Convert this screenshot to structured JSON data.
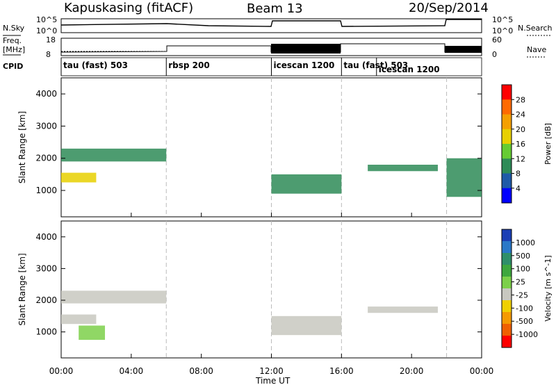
{
  "header": {
    "station": "Kapuskasing (fitACF)",
    "beam": "Beam 13",
    "date": "20/Sep/2014"
  },
  "side_labels": {
    "nsky": "N.Sky",
    "freq": "Freq.",
    "freq_unit": "[MHz]",
    "cpid": "CPID",
    "nsearch": "N.Search",
    "nave": "Nave"
  },
  "noise_axis": {
    "top": "10^5",
    "bottom": "10^0",
    "right_top": "10^5",
    "right_bottom": "10^0"
  },
  "freq_axis": {
    "left_ticks": [
      "18",
      "8"
    ],
    "right_ticks": [
      "60",
      "0"
    ]
  },
  "cpid_segments": [
    {
      "label": "tau (fast) 503",
      "start": 0,
      "end": 6
    },
    {
      "label": "rbsp 200",
      "start": 6,
      "end": 12
    },
    {
      "label": "icescan 1200",
      "start": 12,
      "end": 16
    },
    {
      "label": "tau (fast) 503",
      "start": 16,
      "end": 18
    },
    {
      "label": "icescan 1200",
      "start": 18,
      "end": 22
    }
  ],
  "x_axis": {
    "label": "Time UT",
    "ticks": [
      "00:00",
      "04:00",
      "08:00",
      "12:00",
      "16:00",
      "20:00",
      "00:00"
    ]
  },
  "power_panel": {
    "ylabel": "Slant Range [km]",
    "yticks": [
      "1000",
      "2000",
      "3000",
      "4000"
    ],
    "colorbar_label": "Power [dB]",
    "colorbar_ticks": [
      "4",
      "8",
      "12",
      "16",
      "20",
      "24",
      "28"
    ],
    "colors": [
      "#0000ff",
      "#1f5aa8",
      "#2e8b57",
      "#66cc33",
      "#e8d000",
      "#f5a000",
      "#ff6a00",
      "#ff0000"
    ]
  },
  "velocity_panel": {
    "ylabel": "Slant Range [km]",
    "yticks": [
      "1000",
      "2000",
      "3000",
      "4000"
    ],
    "colorbar_label": "Velocity [m s^-1]",
    "colorbar_ticks": [
      "1000",
      "500",
      "100",
      "25",
      "-25",
      "-100",
      "-500",
      "-1000"
    ],
    "colors": [
      "#1b3fb5",
      "#2a78c8",
      "#2f8f6a",
      "#3ea73e",
      "#7cd04a",
      "#c8c8c0",
      "#f0d000",
      "#f59a00",
      "#f06000",
      "#ff0000"
    ]
  },
  "chart_data": {
    "type": "heatmap",
    "x_range_hours": [
      0,
      24
    ],
    "y_range_km": [
      180,
      4500
    ],
    "power_bands": [
      {
        "t0": 0.0,
        "t1": 2.0,
        "r0": 1250,
        "r1": 1550,
        "value_db": 18
      },
      {
        "t0": 0.0,
        "t1": 6.0,
        "r0": 1900,
        "r1": 2300,
        "value_db": 8
      },
      {
        "t0": 12.0,
        "t1": 16.0,
        "r0": 900,
        "r1": 1500,
        "value_db": 10
      },
      {
        "t0": 17.5,
        "t1": 21.5,
        "r0": 1600,
        "r1": 1800,
        "value_db": 10
      },
      {
        "t0": 22.0,
        "t1": 24.0,
        "r0": 800,
        "r1": 2000,
        "value_db": 8
      }
    ],
    "velocity_bands": [
      {
        "t0": 0.0,
        "t1": 2.0,
        "r0": 1250,
        "r1": 1550,
        "value_ms": 0
      },
      {
        "t0": 0.0,
        "t1": 6.0,
        "r0": 1900,
        "r1": 2300,
        "value_ms": 0
      },
      {
        "t0": 12.0,
        "t1": 16.0,
        "r0": 900,
        "r1": 1500,
        "value_ms": 0
      },
      {
        "t0": 17.5,
        "t1": 21.5,
        "r0": 1600,
        "r1": 1800,
        "value_ms": 0
      },
      {
        "t0": 1.0,
        "t1": 2.5,
        "r0": 750,
        "r1": 1200,
        "value_ms": 100
      }
    ]
  }
}
